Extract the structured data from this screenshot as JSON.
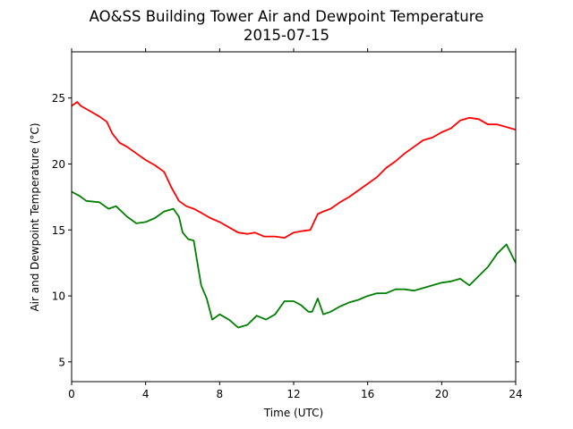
{
  "chart_data": {
    "type": "line",
    "title": "AO&SS Building Tower Air and Dewpoint Temperature",
    "subtitle": "2015-07-15",
    "xlabel": "Time (UTC)",
    "ylabel": "Air and Dewpoint Temperature (°C)",
    "xlim": [
      0,
      24
    ],
    "ylim": [
      3.5,
      28.5
    ],
    "xticks": [
      0,
      4,
      8,
      12,
      16,
      20,
      24
    ],
    "yticks": [
      5,
      10,
      15,
      20,
      25
    ],
    "grid": false,
    "series": [
      {
        "color": "#ff0000",
        "x": [
          0,
          0.3,
          0.5,
          1,
          1.5,
          1.9,
          2.2,
          2.6,
          3,
          3.5,
          4,
          4.5,
          5,
          5.4,
          5.8,
          6.2,
          6.6,
          7,
          7.5,
          8,
          8.5,
          9,
          9.5,
          9.9,
          10.4,
          11,
          11.5,
          12,
          12.4,
          12.9,
          13.3,
          13.6,
          14,
          14.5,
          15,
          15.5,
          16,
          16.5,
          17,
          17.5,
          18,
          18.5,
          19,
          19.5,
          20,
          20.5,
          21,
          21.5,
          22,
          22.5,
          23,
          23.5,
          24
        ],
        "y": [
          24.4,
          24.7,
          24.4,
          24.0,
          23.6,
          23.2,
          22.3,
          21.6,
          21.3,
          20.8,
          20.3,
          19.9,
          19.4,
          18.2,
          17.2,
          16.8,
          16.6,
          16.3,
          15.9,
          15.6,
          15.2,
          14.8,
          14.7,
          14.8,
          14.5,
          14.5,
          14.4,
          14.8,
          14.9,
          15.0,
          16.2,
          16.4,
          16.6,
          17.1,
          17.5,
          18.0,
          18.5,
          19.0,
          19.7,
          20.2,
          20.8,
          21.3,
          21.8,
          22.0,
          22.4,
          22.7,
          23.3,
          23.5,
          23.4,
          23.0,
          23.0,
          22.8,
          22.6
        ]
      },
      {
        "color": "#008000",
        "x": [
          0,
          0.4,
          0.8,
          1.5,
          2,
          2.4,
          3,
          3.5,
          4,
          4.5,
          5,
          5.5,
          5.8,
          6,
          6.3,
          6.6,
          6.8,
          7,
          7.3,
          7.6,
          8,
          8.5,
          9,
          9.5,
          10,
          10.5,
          11,
          11.5,
          12,
          12.4,
          12.8,
          13,
          13.3,
          13.6,
          14,
          14.5,
          15,
          15.5,
          16,
          16.5,
          17,
          17.5,
          18,
          18.5,
          19,
          19.5,
          20,
          20.5,
          21,
          21.5,
          22,
          22.5,
          23,
          23.5,
          24
        ],
        "y": [
          17.9,
          17.6,
          17.2,
          17.1,
          16.6,
          16.8,
          16.0,
          15.5,
          15.6,
          15.9,
          16.4,
          16.6,
          16.0,
          14.8,
          14.3,
          14.2,
          12.5,
          10.8,
          9.8,
          8.2,
          8.6,
          8.2,
          7.6,
          7.8,
          8.5,
          8.2,
          8.6,
          9.6,
          9.6,
          9.3,
          8.8,
          8.8,
          9.8,
          8.6,
          8.8,
          9.2,
          9.5,
          9.7,
          10.0,
          10.2,
          10.2,
          10.5,
          10.5,
          10.4,
          10.6,
          10.8,
          11.0,
          11.1,
          11.3,
          10.8,
          11.5,
          12.2,
          13.2,
          13.9,
          12.5
        ]
      }
    ]
  }
}
